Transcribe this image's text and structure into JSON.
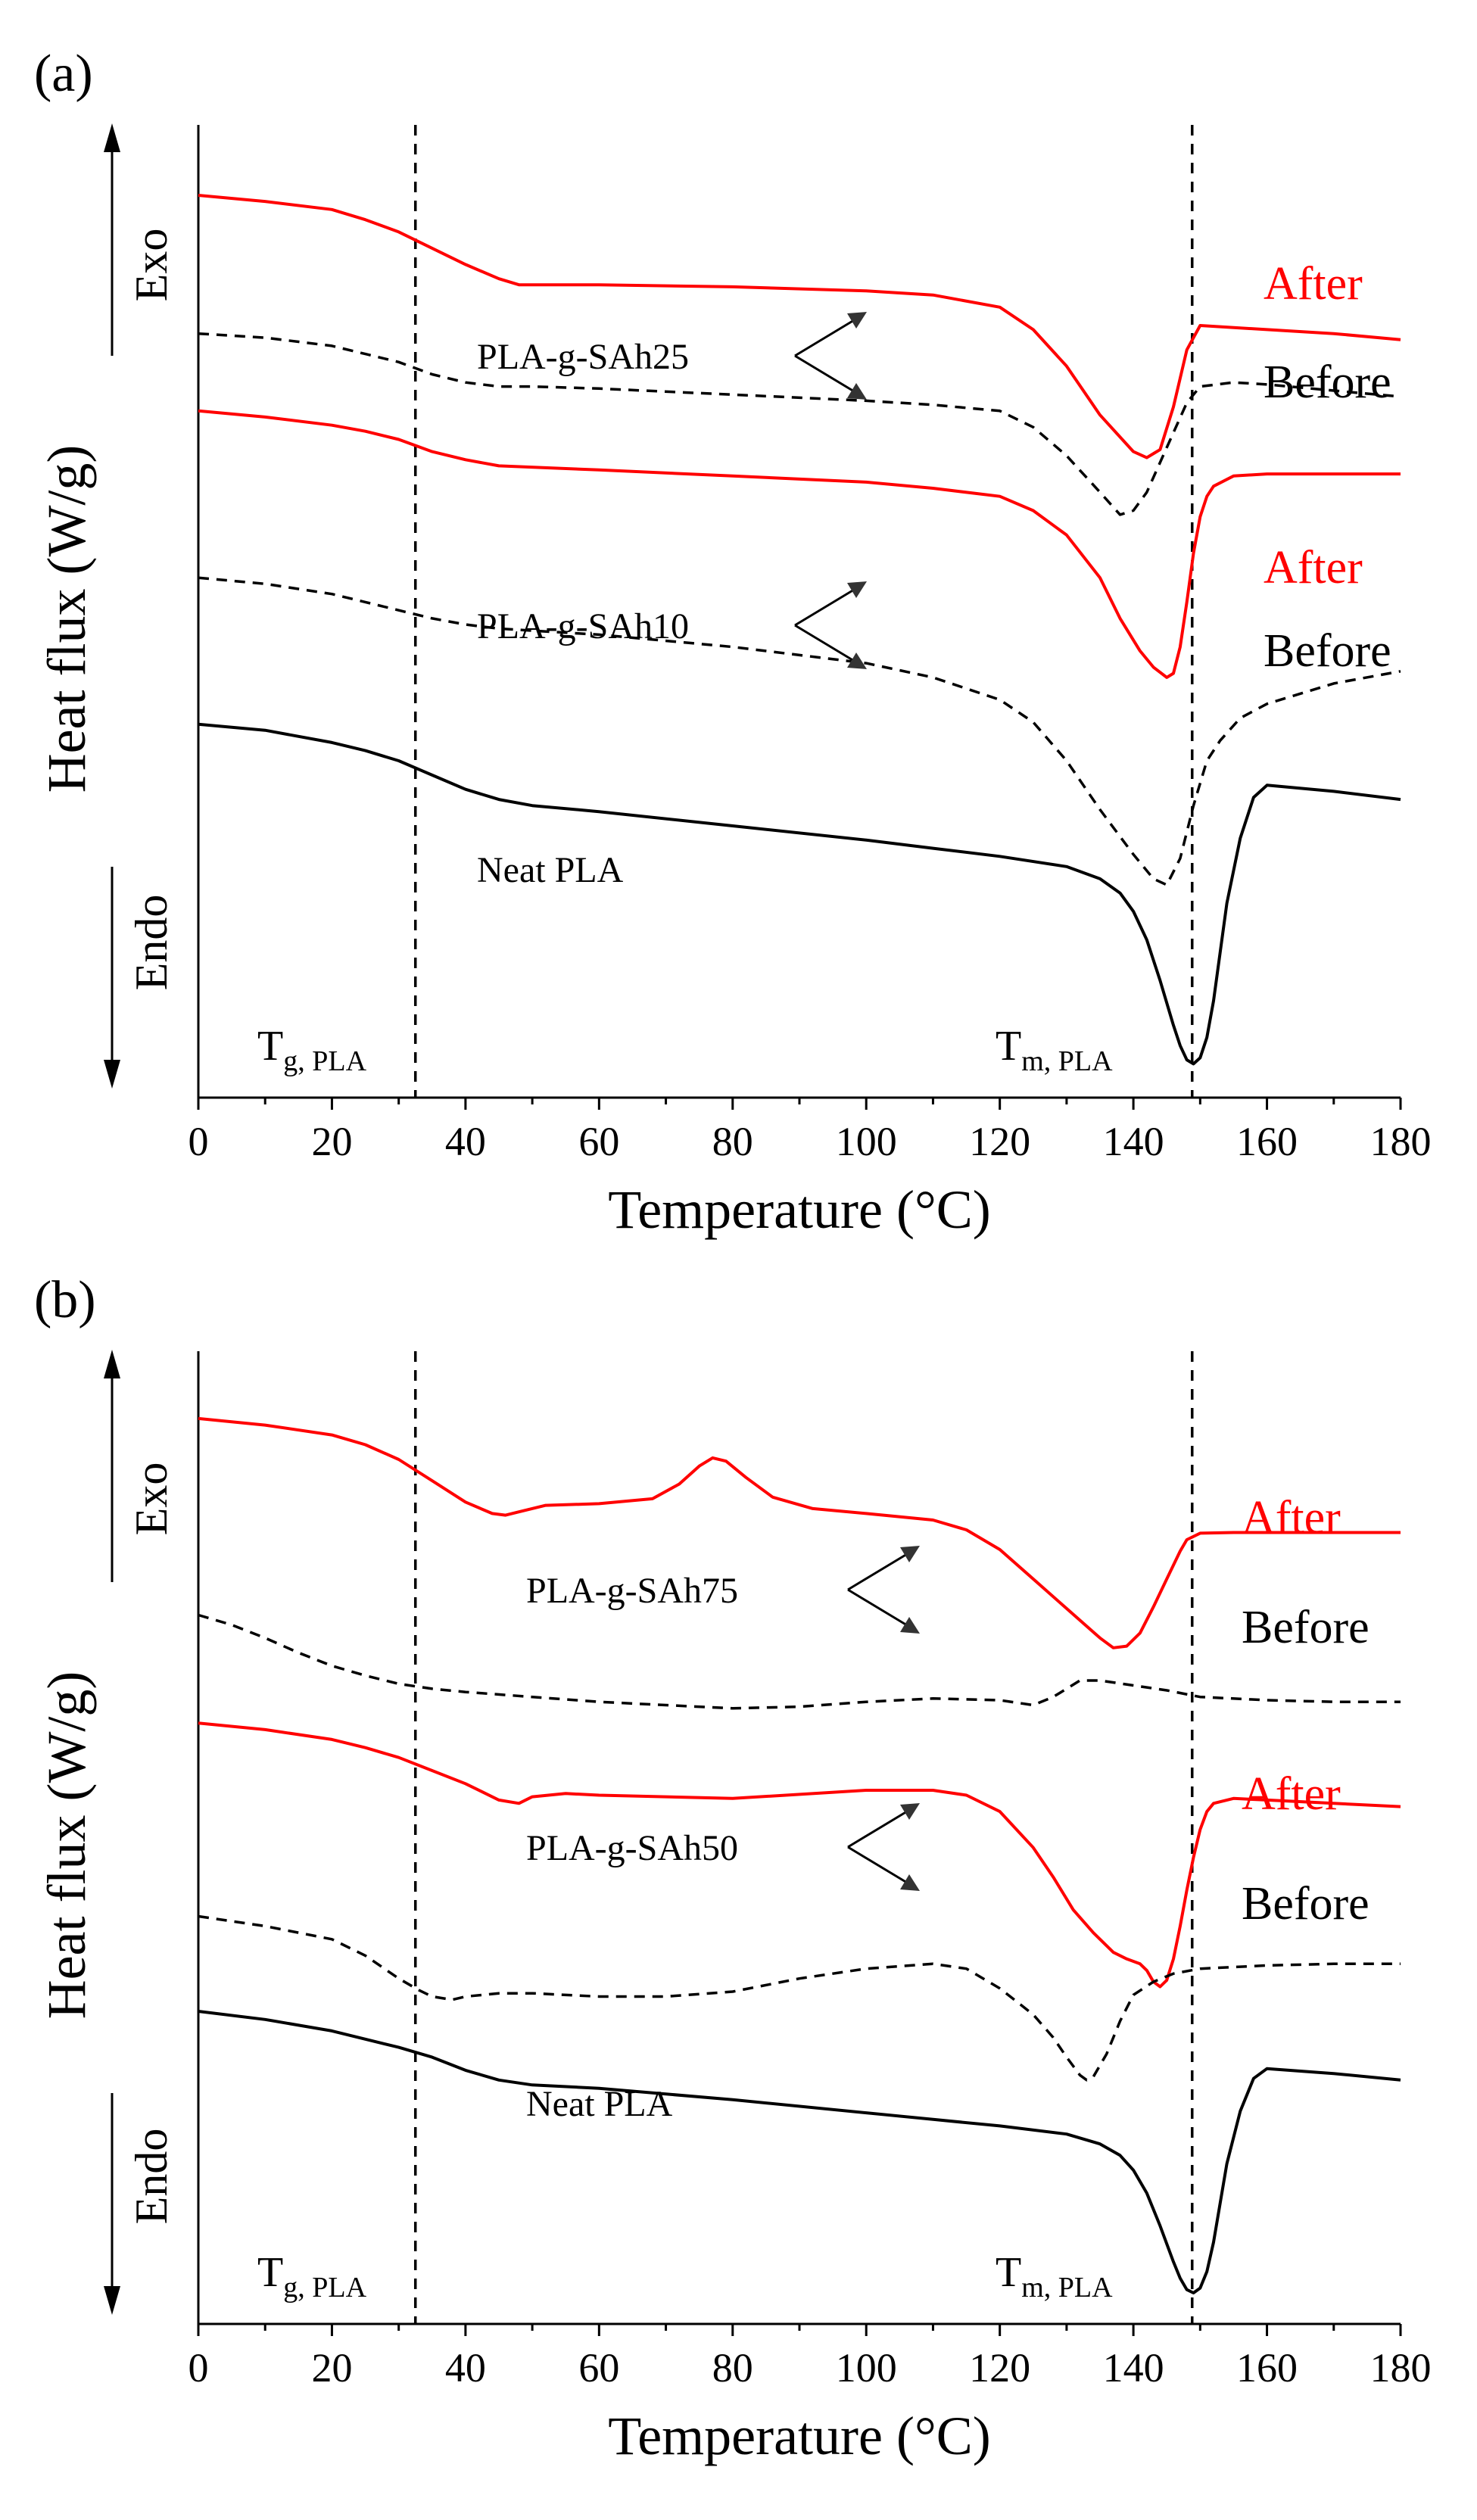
{
  "chart_data": [
    {
      "panel_label": "(a)",
      "type": "line",
      "xlabel": "Temperature (°C)",
      "ylabel": "Heat flux (W/g)",
      "xlim": [
        0,
        180
      ],
      "xticks": [
        0,
        20,
        40,
        60,
        80,
        100,
        120,
        140,
        160,
        180
      ],
      "exo_label": "Exo",
      "endo_label": "Endo",
      "tg_label": {
        "main": "T",
        "sub": "g, PLA"
      },
      "tm_label": {
        "main": "T",
        "sub": "m, PLA"
      },
      "tg_x": 32.5,
      "tm_x": 148.8,
      "group_labels": [
        "PLA-g-SAh25",
        "PLA-g-SAh10"
      ],
      "neat_label": "Neat PLA",
      "after_label": "After",
      "before_label": "Before",
      "colors": {
        "after": "#ff0000",
        "before": "#000000",
        "neat": "#000000"
      },
      "series": [
        {
          "id": "a-sah25-after",
          "style": "after",
          "x": [
            0,
            10,
            20,
            25,
            30,
            35,
            40,
            45,
            48,
            60,
            80,
            100,
            110,
            120,
            125,
            130,
            135,
            140,
            142,
            144,
            146,
            148,
            150,
            160,
            170,
            180
          ],
          "y": [
            13.0,
            12.85,
            12.65,
            12.4,
            12.1,
            11.7,
            11.3,
            10.95,
            10.8,
            10.8,
            10.75,
            10.65,
            10.55,
            10.25,
            9.7,
            8.8,
            7.6,
            6.7,
            6.55,
            6.75,
            7.8,
            9.2,
            9.8,
            9.7,
            9.6,
            9.45
          ]
        },
        {
          "id": "a-sah25-before",
          "style": "before",
          "x": [
            0,
            10,
            20,
            25,
            30,
            35,
            40,
            45,
            50,
            60,
            80,
            100,
            110,
            120,
            125,
            130,
            135,
            138,
            140,
            142,
            145,
            148,
            150,
            155,
            160,
            170,
            180
          ],
          "y": [
            9.6,
            9.5,
            9.3,
            9.1,
            8.9,
            8.6,
            8.4,
            8.3,
            8.3,
            8.25,
            8.1,
            7.95,
            7.85,
            7.7,
            7.3,
            6.6,
            5.7,
            5.15,
            5.25,
            5.7,
            6.8,
            7.9,
            8.3,
            8.4,
            8.35,
            8.2,
            8.05
          ]
        },
        {
          "id": "a-sah10-after",
          "style": "after",
          "x": [
            0,
            10,
            20,
            25,
            30,
            35,
            40,
            45,
            60,
            80,
            100,
            110,
            120,
            125,
            130,
            135,
            138,
            141,
            143,
            145,
            146,
            147,
            148,
            149,
            150,
            151,
            152,
            155,
            160,
            170,
            180
          ],
          "y": [
            7.7,
            7.55,
            7.35,
            7.2,
            7.0,
            6.7,
            6.5,
            6.35,
            6.25,
            6.1,
            5.95,
            5.8,
            5.6,
            5.25,
            4.65,
            3.6,
            2.6,
            1.8,
            1.4,
            1.15,
            1.25,
            1.9,
            3.0,
            4.2,
            5.1,
            5.6,
            5.85,
            6.1,
            6.15,
            6.15,
            6.15
          ]
        },
        {
          "id": "a-sah10-before",
          "style": "before",
          "x": [
            0,
            10,
            20,
            25,
            30,
            35,
            40,
            45,
            50,
            60,
            80,
            100,
            110,
            120,
            125,
            130,
            135,
            140,
            143,
            145,
            147,
            149,
            151,
            153,
            156,
            160,
            170,
            180
          ],
          "y": [
            3.6,
            3.45,
            3.2,
            3.0,
            2.8,
            2.6,
            2.45,
            2.35,
            2.3,
            2.2,
            1.9,
            1.5,
            1.15,
            0.6,
            0.05,
            -0.9,
            -2.1,
            -3.2,
            -3.8,
            -3.95,
            -3.3,
            -2.0,
            -0.9,
            -0.4,
            0.15,
            0.5,
            1.0,
            1.3
          ]
        },
        {
          "id": "a-neat",
          "style": "neat",
          "x": [
            0,
            10,
            20,
            25,
            30,
            35,
            40,
            45,
            50,
            60,
            80,
            100,
            110,
            120,
            130,
            135,
            138,
            140,
            142,
            144,
            146,
            147,
            148,
            149,
            150,
            151,
            152,
            153,
            154,
            156,
            158,
            160,
            170,
            180
          ],
          "y": [
            0.0,
            -0.15,
            -0.45,
            -0.65,
            -0.9,
            -1.25,
            -1.6,
            -1.85,
            -2.0,
            -2.15,
            -2.5,
            -2.85,
            -3.05,
            -3.25,
            -3.5,
            -3.8,
            -4.15,
            -4.6,
            -5.3,
            -6.3,
            -7.4,
            -7.9,
            -8.25,
            -8.35,
            -8.2,
            -7.7,
            -6.8,
            -5.6,
            -4.4,
            -2.8,
            -1.8,
            -1.5,
            -1.65,
            -1.85
          ]
        }
      ]
    },
    {
      "panel_label": "(b)",
      "type": "line",
      "xlabel": "Temperature (°C)",
      "ylabel": "Heat flux (W/g)",
      "xlim": [
        0,
        180
      ],
      "xticks": [
        0,
        20,
        40,
        60,
        80,
        100,
        120,
        140,
        160,
        180
      ],
      "exo_label": "Exo",
      "endo_label": "Endo",
      "tg_label": {
        "main": "T",
        "sub": "g, PLA"
      },
      "tm_label": {
        "main": "T",
        "sub": "m, PLA"
      },
      "tg_x": 32.5,
      "tm_x": 148.8,
      "group_labels": [
        "PLA-g-SAh75",
        "PLA-g-SAh50"
      ],
      "neat_label": "Neat PLA",
      "after_label": "After",
      "before_label": "Before",
      "colors": {
        "after": "#ff0000",
        "before": "#000000",
        "neat": "#000000"
      },
      "series": [
        {
          "id": "b-sah75-after",
          "style": "after",
          "x": [
            0,
            10,
            20,
            25,
            30,
            35,
            40,
            44,
            46,
            48,
            52,
            60,
            68,
            72,
            75,
            77,
            79,
            82,
            86,
            92,
            100,
            110,
            115,
            120,
            125,
            130,
            135,
            137,
            139,
            141,
            143,
            145,
            147,
            148,
            150,
            155,
            160,
            170,
            180
          ],
          "y": [
            13.1,
            12.9,
            12.6,
            12.3,
            11.85,
            11.2,
            10.55,
            10.2,
            10.15,
            10.25,
            10.45,
            10.5,
            10.65,
            11.1,
            11.65,
            11.9,
            11.8,
            11.3,
            10.7,
            10.35,
            10.2,
            10.0,
            9.7,
            9.1,
            8.2,
            7.3,
            6.4,
            6.1,
            6.15,
            6.55,
            7.35,
            8.2,
            9.05,
            9.4,
            9.6,
            9.62,
            9.62,
            9.62,
            9.62
          ]
        },
        {
          "id": "b-sah75-before",
          "style": "before",
          "x": [
            0,
            5,
            10,
            15,
            20,
            25,
            30,
            35,
            40,
            50,
            60,
            70,
            80,
            90,
            100,
            110,
            120,
            125,
            128,
            130,
            132,
            135,
            140,
            145,
            150,
            160,
            170,
            180
          ],
          "y": [
            7.1,
            6.8,
            6.4,
            5.95,
            5.55,
            5.25,
            5.0,
            4.85,
            4.75,
            4.6,
            4.45,
            4.35,
            4.25,
            4.3,
            4.45,
            4.55,
            4.5,
            4.35,
            4.6,
            4.85,
            5.1,
            5.1,
            4.95,
            4.8,
            4.6,
            4.5,
            4.45,
            4.45
          ]
        },
        {
          "id": "b-sah50-after",
          "style": "after",
          "x": [
            0,
            10,
            20,
            25,
            30,
            35,
            40,
            45,
            48,
            50,
            55,
            60,
            80,
            100,
            110,
            115,
            120,
            125,
            128,
            131,
            134,
            137,
            139,
            141,
            142,
            143,
            144,
            145,
            146,
            147,
            148,
            149,
            150,
            151,
            152,
            155,
            160,
            170,
            180
          ],
          "y": [
            3.8,
            3.6,
            3.3,
            3.05,
            2.75,
            2.35,
            1.95,
            1.45,
            1.35,
            1.55,
            1.65,
            1.6,
            1.5,
            1.75,
            1.75,
            1.6,
            1.1,
            0.0,
            -0.9,
            -1.9,
            -2.6,
            -3.2,
            -3.4,
            -3.55,
            -3.75,
            -4.1,
            -4.25,
            -4.05,
            -3.4,
            -2.4,
            -1.3,
            -0.3,
            0.55,
            1.1,
            1.35,
            1.5,
            1.45,
            1.35,
            1.25
          ]
        },
        {
          "id": "b-sah50-before",
          "style": "before",
          "x": [
            0,
            10,
            20,
            25,
            30,
            33,
            35,
            38,
            40,
            45,
            50,
            60,
            70,
            80,
            90,
            100,
            110,
            115,
            120,
            125,
            128,
            130,
            132,
            133,
            134,
            136,
            138,
            140,
            143,
            146,
            150,
            160,
            170,
            180
          ],
          "y": [
            -2.1,
            -2.4,
            -2.8,
            -3.3,
            -4.0,
            -4.35,
            -4.55,
            -4.65,
            -4.55,
            -4.45,
            -4.45,
            -4.55,
            -4.55,
            -4.4,
            -4.0,
            -3.7,
            -3.55,
            -3.7,
            -4.3,
            -5.1,
            -5.8,
            -6.4,
            -6.95,
            -7.1,
            -7.0,
            -6.3,
            -5.3,
            -4.5,
            -4.1,
            -3.85,
            -3.7,
            -3.6,
            -3.55,
            -3.55
          ]
        },
        {
          "id": "b-neat",
          "style": "neat",
          "x": [
            0,
            10,
            20,
            25,
            30,
            35,
            40,
            45,
            50,
            60,
            80,
            100,
            110,
            120,
            130,
            135,
            138,
            140,
            142,
            144,
            146,
            147,
            148,
            149,
            150,
            151,
            152,
            153,
            154,
            156,
            158,
            160,
            170,
            180
          ],
          "y": [
            -5.0,
            -5.25,
            -5.6,
            -5.85,
            -6.1,
            -6.4,
            -6.8,
            -7.1,
            -7.25,
            -7.35,
            -7.7,
            -8.1,
            -8.3,
            -8.5,
            -8.75,
            -9.05,
            -9.4,
            -9.85,
            -10.55,
            -11.55,
            -12.65,
            -13.15,
            -13.5,
            -13.6,
            -13.45,
            -12.95,
            -12.05,
            -10.85,
            -9.65,
            -8.05,
            -7.05,
            -6.75,
            -6.9,
            -7.1
          ]
        }
      ]
    }
  ]
}
